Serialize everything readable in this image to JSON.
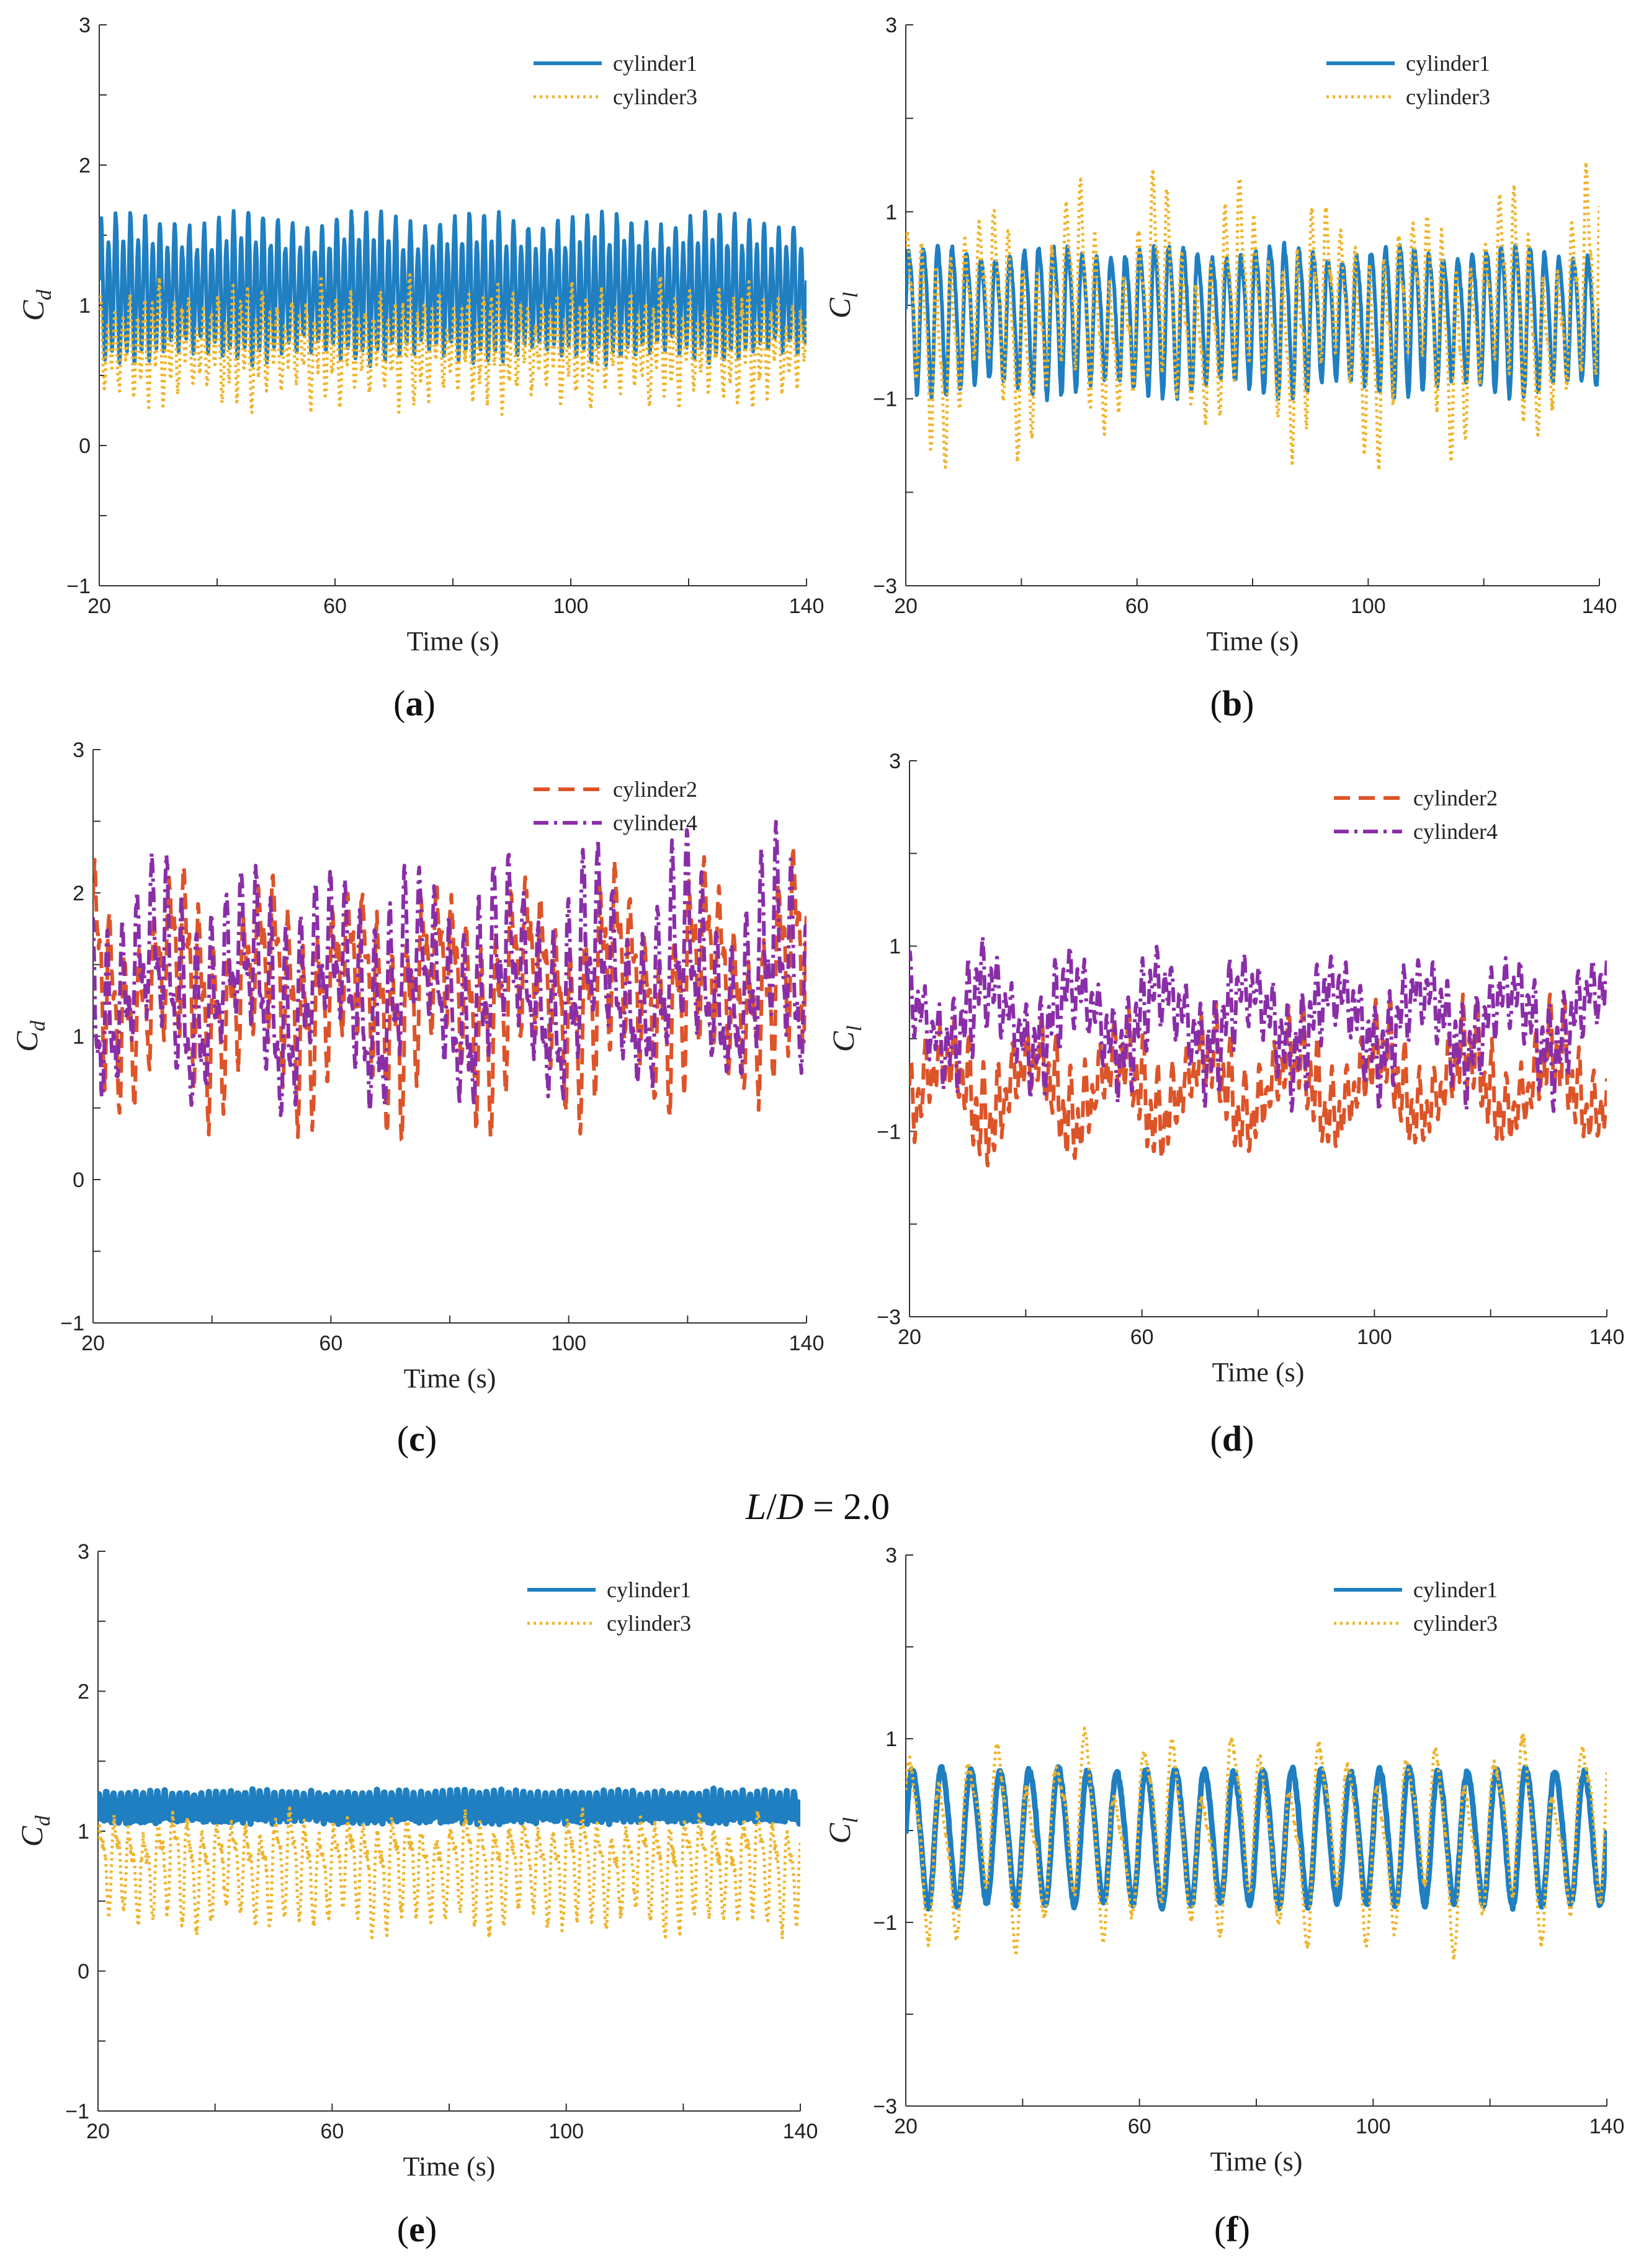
{
  "colors": {
    "cylinder1": "#1f7fc1",
    "cylinder2": "#dd5428",
    "cylinder3": "#efb42c",
    "cylinder4": "#8a2ea8",
    "axis": "#333333"
  },
  "center_label": {
    "lhs": "L",
    "slash": "/",
    "mid": "D",
    "rhs": " = 2.0"
  },
  "chart_data": [
    {
      "id": "a",
      "type": "line",
      "caption": "a",
      "xlabel": "Time",
      "xunit": "(s)",
      "ylabel": "C",
      "ylabel_sub": "d",
      "xlim": [
        20,
        140
      ],
      "ylim": [
        -1,
        3
      ],
      "xticks": [
        20,
        60,
        100,
        140
      ],
      "xtick_labels": [
        "20",
        "60",
        "100",
        "140"
      ],
      "yticks": [
        -1,
        0,
        1,
        2,
        3
      ],
      "ytick_labels": [
        "−1",
        "0",
        "1",
        "2",
        "3"
      ],
      "series": [
        {
          "name": "cylinder1",
          "style": "solid",
          "width": 6,
          "color_key": "cylinder1",
          "signal": {
            "mean": 1.1,
            "components": [
              [
                0.42,
                0.8,
                0
              ],
              [
                0.1,
                0.4,
                1.2
              ]
            ],
            "mod": [
              0.1,
              0.05
            ],
            "noise": 0.03,
            "seed": 11
          }
        },
        {
          "name": "cylinder3",
          "style": "dotted",
          "width": 5,
          "color_key": "cylinder3",
          "signal": {
            "mean": 0.72,
            "components": [
              [
                0.26,
                0.8,
                0.5
              ],
              [
                0.12,
                0.4,
                2.0
              ],
              [
                0.06,
                0.21,
                0.3
              ]
            ],
            "mod": [
              0.2,
              0.07
            ],
            "noise": 0.05,
            "seed": 23
          }
        }
      ]
    },
    {
      "id": "b",
      "type": "line",
      "caption": "b",
      "xlabel": "Time",
      "xunit": "(s)",
      "ylabel": "C",
      "ylabel_sub": "l",
      "xlim": [
        20,
        140
      ],
      "ylim": [
        -3,
        3
      ],
      "xticks": [
        20,
        60,
        100,
        140
      ],
      "xtick_labels": [
        "20",
        "60",
        "100",
        "140"
      ],
      "yticks": [
        -3,
        -1,
        1,
        3
      ],
      "ytick_labels": [
        "−3",
        "−1",
        "1",
        "3"
      ],
      "series": [
        {
          "name": "cylinder1",
          "style": "solid",
          "width": 6,
          "color_key": "cylinder1",
          "signal": {
            "mean": -0.1,
            "components": [
              [
                0.7,
                0.4,
                0
              ],
              [
                0.12,
                0.8,
                0.7
              ]
            ],
            "mod": [
              0.12,
              0.05
            ],
            "noise": 0.04,
            "seed": 31
          }
        },
        {
          "name": "cylinder3",
          "style": "dotted",
          "width": 5,
          "color_key": "cylinder3",
          "signal": {
            "mean": -0.1,
            "components": [
              [
                0.72,
                0.4,
                0.5
              ],
              [
                0.3,
                0.8,
                1.2
              ],
              [
                0.45,
                0.067,
                0.0
              ]
            ],
            "mod": [
              0.25,
              0.08
            ],
            "noise": 0.06,
            "seed": 47
          }
        }
      ]
    },
    {
      "id": "c",
      "type": "line",
      "caption": "c",
      "xlabel": "Time",
      "xunit": "(s)",
      "ylabel": "C",
      "ylabel_sub": "d",
      "xlim": [
        20,
        140
      ],
      "ylim": [
        -1,
        3
      ],
      "xticks": [
        20,
        60,
        100,
        140
      ],
      "xtick_labels": [
        "20",
        "60",
        "100",
        "140"
      ],
      "yticks": [
        -1,
        0,
        1,
        2,
        3
      ],
      "ytick_labels": [
        "−1",
        "0",
        "1",
        "2",
        "3"
      ],
      "series": [
        {
          "name": "cylinder2",
          "style": "dashed",
          "width": 6,
          "color_key": "cylinder2",
          "signal": {
            "mean": 1.35,
            "components": [
              [
                0.42,
                0.4,
                0.2
              ],
              [
                0.25,
                0.8,
                1.0
              ],
              [
                0.3,
                0.067,
                0.0
              ]
            ],
            "mod": [
              0.18,
              0.06
            ],
            "noise": 0.06,
            "seed": 53
          }
        },
        {
          "name": "cylinder4",
          "style": "dashdot",
          "width": 6,
          "color_key": "cylinder4",
          "signal": {
            "mean": 1.35,
            "components": [
              [
                0.42,
                0.4,
                1.6
              ],
              [
                0.25,
                0.8,
                2.4
              ],
              [
                0.3,
                0.067,
                1.5
              ]
            ],
            "mod": [
              0.18,
              0.06
            ],
            "noise": 0.06,
            "seed": 61
          }
        }
      ]
    },
    {
      "id": "d",
      "type": "line",
      "caption": "d",
      "xlabel": "Time",
      "xunit": "(s)",
      "ylabel": "C",
      "ylabel_sub": "l",
      "xlim": [
        20,
        140
      ],
      "ylim": [
        -3,
        3
      ],
      "xticks": [
        20,
        60,
        100,
        140
      ],
      "xtick_labels": [
        "20",
        "60",
        "100",
        "140"
      ],
      "yticks": [
        -3,
        -1,
        1,
        3
      ],
      "ytick_labels": [
        "−3",
        "−1",
        "1",
        "3"
      ],
      "series": [
        {
          "name": "cylinder2",
          "style": "dashed",
          "width": 6,
          "color_key": "cylinder2",
          "signal": {
            "mean": -0.5,
            "components": [
              [
                0.3,
                0.8,
                0.4
              ],
              [
                0.22,
                0.4,
                1.1
              ],
              [
                0.35,
                0.067,
                3.14
              ]
            ],
            "mod": [
              0.25,
              0.07
            ],
            "noise": 0.05,
            "seed": 71
          }
        },
        {
          "name": "cylinder4",
          "style": "dashdot",
          "width": 6,
          "color_key": "cylinder4",
          "signal": {
            "mean": 0.25,
            "components": [
              [
                0.3,
                0.8,
                0.9
              ],
              [
                0.22,
                0.4,
                2.2
              ],
              [
                0.35,
                0.067,
                0.0
              ]
            ],
            "mod": [
              0.25,
              0.07
            ],
            "noise": 0.05,
            "seed": 83
          }
        }
      ]
    },
    {
      "id": "e",
      "type": "line",
      "caption": "e",
      "xlabel": "Time",
      "xunit": "(s)",
      "ylabel": "C",
      "ylabel_sub": "d",
      "xlim": [
        20,
        140
      ],
      "ylim": [
        -1,
        3
      ],
      "xticks": [
        20,
        60,
        100,
        140
      ],
      "xtick_labels": [
        "20",
        "60",
        "100",
        "140"
      ],
      "yticks": [
        -1,
        0,
        1,
        2,
        3
      ],
      "ytick_labels": [
        "−1",
        "0",
        "1",
        "2",
        "3"
      ],
      "series": [
        {
          "name": "cylinder1",
          "style": "solid",
          "width": 10,
          "color_key": "cylinder1",
          "signal": {
            "mean": 1.16,
            "components": [
              [
                0.08,
                1.6,
                0
              ],
              [
                0.04,
                0.8,
                0.6
              ]
            ],
            "mod": [
              0.05,
              0.05
            ],
            "noise": 0.02,
            "seed": 91
          }
        },
        {
          "name": "cylinder3",
          "style": "dotted",
          "width": 5,
          "color_key": "cylinder3",
          "signal": {
            "mean": 0.75,
            "components": [
              [
                0.28,
                0.4,
                0.3
              ],
              [
                0.12,
                0.8,
                1.4
              ],
              [
                0.06,
                0.1,
                0.0
              ]
            ],
            "mod": [
              0.12,
              0.06
            ],
            "noise": 0.05,
            "seed": 97
          }
        }
      ]
    },
    {
      "id": "f",
      "type": "line",
      "caption": "f",
      "xlabel": "Time",
      "xunit": "(s)",
      "ylabel": "C",
      "ylabel_sub": "l",
      "xlim": [
        20,
        140
      ],
      "ylim": [
        -3,
        3
      ],
      "xticks": [
        20,
        60,
        100,
        140
      ],
      "xtick_labels": [
        "20",
        "60",
        "100",
        "140"
      ],
      "yticks": [
        -3,
        -1,
        1,
        3
      ],
      "ytick_labels": [
        "−3",
        "−1",
        "1",
        "3"
      ],
      "series": [
        {
          "name": "cylinder1",
          "style": "solid",
          "width": 9,
          "color_key": "cylinder1",
          "signal": {
            "mean": -0.05,
            "components": [
              [
                0.72,
                0.2,
                0
              ],
              [
                0.06,
                0.4,
                0.5
              ]
            ],
            "mod": [
              0.03,
              0.05
            ],
            "noise": 0.03,
            "seed": 101
          }
        },
        {
          "name": "cylinder3",
          "style": "dotted",
          "width": 5,
          "color_key": "cylinder3",
          "signal": {
            "mean": -0.05,
            "components": [
              [
                0.75,
                0.2,
                0.25
              ],
              [
                0.22,
                0.4,
                1.0
              ],
              [
                0.3,
                0.067,
                0.0
              ]
            ],
            "mod": [
              0.18,
              0.08
            ],
            "noise": 0.05,
            "seed": 113
          }
        }
      ]
    }
  ]
}
